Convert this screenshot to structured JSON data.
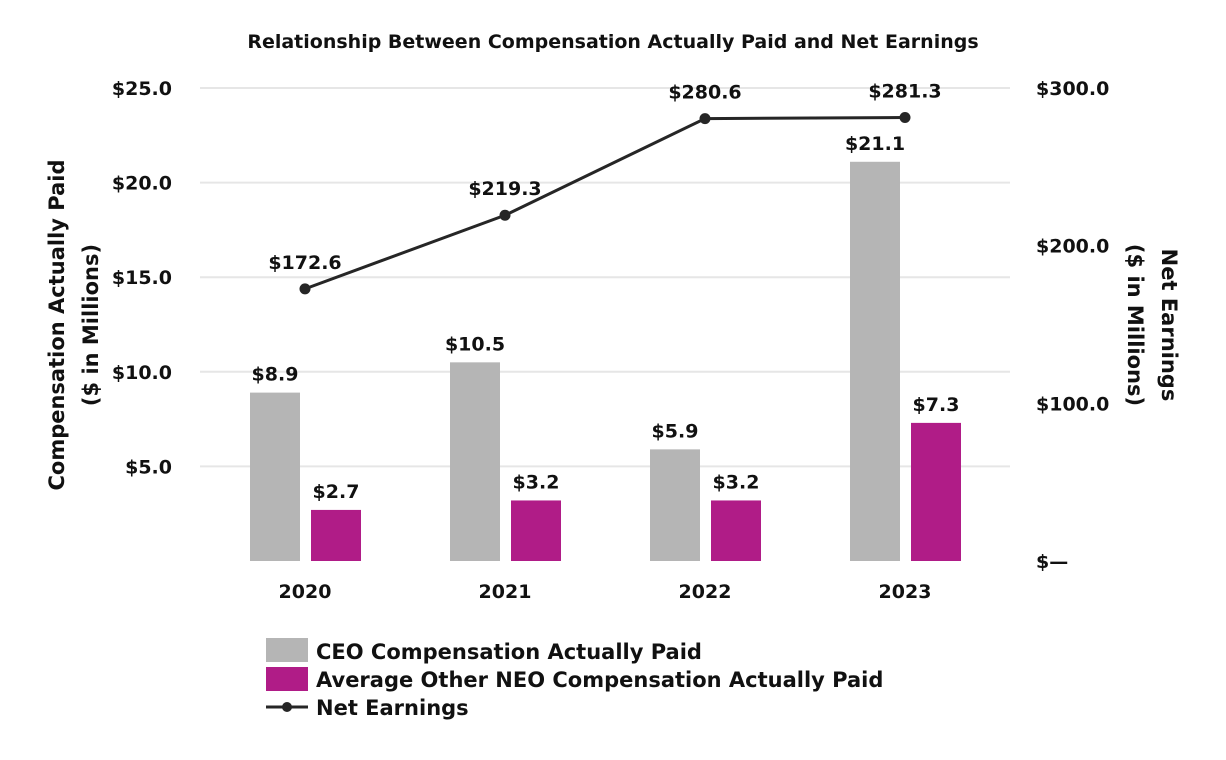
{
  "chart_data": {
    "type": "bar",
    "title": "Relationship Between Compensation Actually Paid and Net Earnings",
    "categories": [
      "2020",
      "2021",
      "2022",
      "2023"
    ],
    "y_left": {
      "label_line1": "Compensation Actually Paid",
      "label_line2": "($ in Millions)",
      "ylim": [
        0,
        25
      ],
      "ticks": [
        5,
        10,
        15,
        20,
        25
      ],
      "tick_labels": [
        "$5.0",
        "$10.0",
        "$15.0",
        "$20.0",
        "$25.0"
      ]
    },
    "y_right": {
      "label_line1": "Net Earnings",
      "label_line2": "($ in Millions)",
      "ylim": [
        0,
        300
      ],
      "ticks": [
        0,
        100,
        200,
        300
      ],
      "tick_labels": [
        "$—",
        "$100.0",
        "$200.0",
        "$300.0"
      ]
    },
    "grid": true,
    "legend_position": "bottom",
    "series": [
      {
        "name": "CEO Compensation Actually Paid",
        "type": "bar",
        "axis": "left",
        "color": "#b5b5b5",
        "values": [
          8.9,
          10.5,
          5.9,
          21.1
        ],
        "labels": [
          "$8.9",
          "$10.5",
          "$5.9",
          "$21.1"
        ]
      },
      {
        "name": "Average Other NEO Compensation Actually Paid",
        "type": "bar",
        "axis": "left",
        "color": "#b01c87",
        "values": [
          2.7,
          3.2,
          3.2,
          7.3
        ],
        "labels": [
          "$2.7",
          "$3.2",
          "$3.2",
          "$7.3"
        ]
      },
      {
        "name": "Net Earnings",
        "type": "line",
        "axis": "right",
        "color": "#262626",
        "values": [
          172.6,
          219.3,
          280.6,
          281.3
        ],
        "labels": [
          "$172.6",
          "$219.3",
          "$280.6",
          "$281.3"
        ]
      }
    ]
  }
}
